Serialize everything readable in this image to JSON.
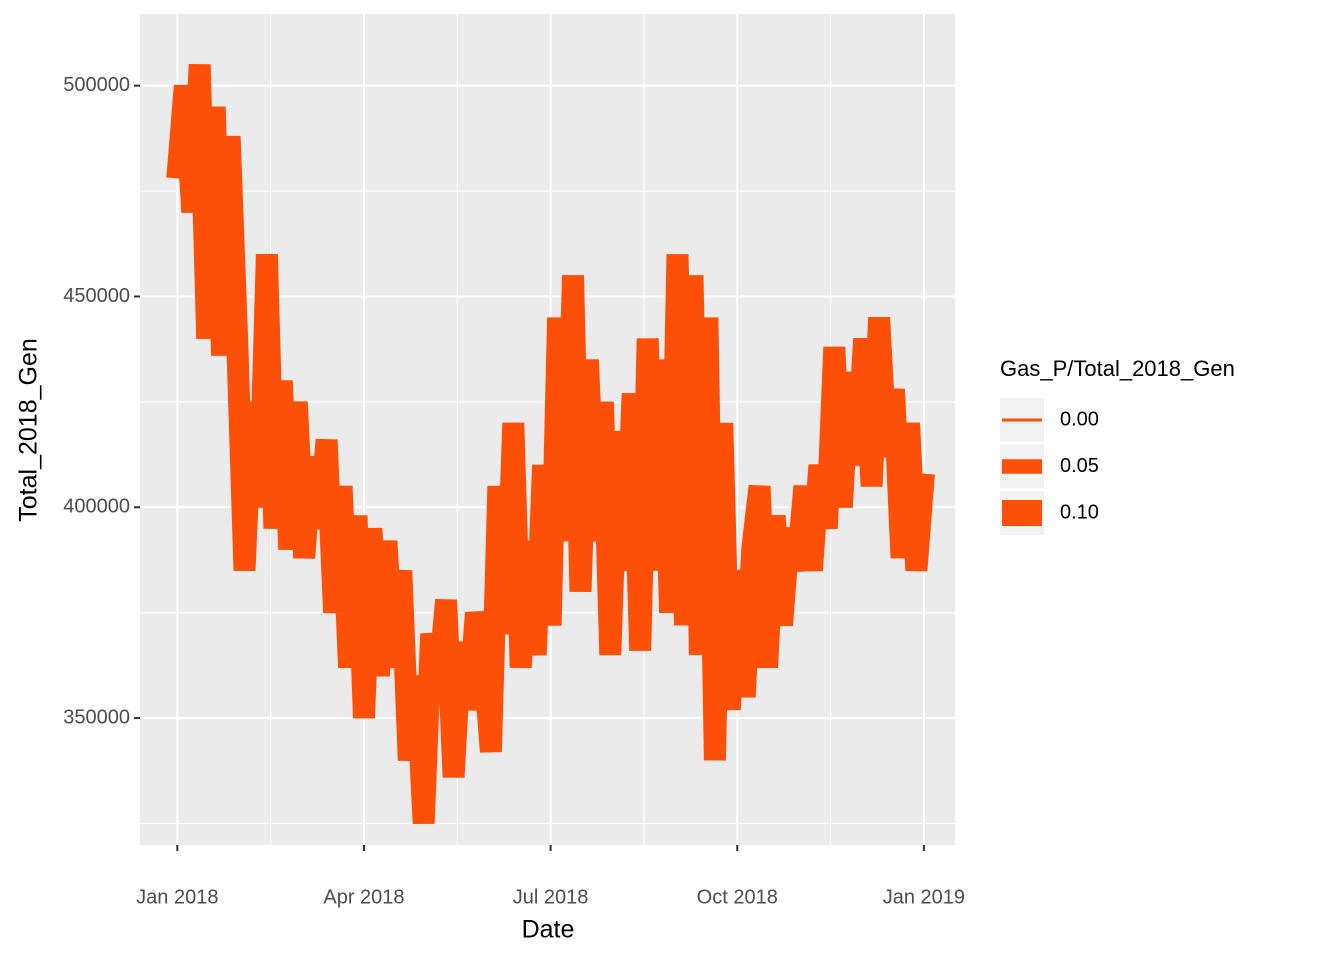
{
  "chart_data": {
    "type": "line",
    "x_label": "Date",
    "y_label": "Total_2018_Gen",
    "color": "#fc5008",
    "x": [
      0,
      0.12,
      0.24,
      0.36,
      0.48,
      0.6,
      0.72,
      0.84,
      0.96,
      1.08,
      1.2,
      1.32,
      1.44,
      1.56,
      1.68,
      1.8,
      1.92,
      2.04,
      2.16,
      2.28,
      2.4,
      2.52,
      2.64,
      2.76,
      2.88,
      3.0,
      3.12,
      3.24,
      3.36,
      3.48,
      3.6,
      3.72,
      3.84,
      3.96,
      4.08,
      4.2,
      4.32,
      4.44,
      4.56,
      4.68,
      4.8,
      4.92,
      5.04,
      5.16,
      5.28,
      5.4,
      5.52,
      5.64,
      5.76,
      5.88,
      6.0,
      6.12,
      6.24,
      6.36,
      6.48,
      6.6,
      6.72,
      6.84,
      6.96,
      7.08,
      7.2,
      7.32,
      7.44,
      7.56,
      7.68,
      7.8,
      7.92,
      8.04,
      8.16,
      8.28,
      8.4,
      8.52,
      8.64,
      8.76,
      8.88,
      9.0,
      9.12,
      9.24,
      9.36,
      9.48,
      9.6,
      9.72,
      9.84,
      9.96,
      10.08,
      10.2,
      10.32,
      10.44,
      10.56,
      10.68,
      10.8,
      10.92,
      11.04,
      11.16,
      11.28,
      11.4,
      11.52,
      11.64,
      11.76,
      11.88,
      12.0
    ],
    "values": [
      478000,
      500000,
      470000,
      505000,
      440000,
      495000,
      436000,
      488000,
      440000,
      385000,
      425000,
      400000,
      460000,
      395000,
      430000,
      390000,
      425000,
      388000,
      412000,
      395000,
      416000,
      375000,
      405000,
      362000,
      398000,
      350000,
      395000,
      360000,
      392000,
      362000,
      385000,
      340000,
      360000,
      325000,
      370000,
      358000,
      378000,
      336000,
      368000,
      352000,
      375000,
      365000,
      342000,
      405000,
      370000,
      420000,
      362000,
      392000,
      365000,
      410000,
      372000,
      445000,
      392000,
      455000,
      380000,
      435000,
      392000,
      425000,
      365000,
      418000,
      385000,
      427000,
      366000,
      440000,
      385000,
      435000,
      375000,
      460000,
      372000,
      455000,
      365000,
      445000,
      340000,
      420000,
      352000,
      385000,
      355000,
      390000,
      405000,
      362000,
      398000,
      372000,
      395000,
      385000,
      405000,
      385000,
      410000,
      395000,
      438000,
      400000,
      432000,
      410000,
      440000,
      405000,
      445000,
      412000,
      428000,
      388000,
      420000,
      385000,
      408000
    ],
    "xlim": [
      -0.6,
      12.5
    ],
    "xticks": [
      {
        "value": 0,
        "label": "Jan 2018"
      },
      {
        "value": 3,
        "label": "Apr 2018"
      },
      {
        "value": 6,
        "label": "Jul 2018"
      },
      {
        "value": 9,
        "label": "Oct 2018"
      },
      {
        "value": 12,
        "label": "Jan 2019"
      }
    ],
    "ylim": [
      319900,
      517000
    ],
    "yticks": [
      350000,
      400000,
      450000,
      500000
    ],
    "grid": true,
    "size_legend": {
      "title": "Gas_P/Total_2018_Gen",
      "entries": [
        {
          "value": 0,
          "label": "0.00"
        },
        {
          "value": 0.05,
          "label": "0.05"
        },
        {
          "value": 0.1,
          "label": "0.10"
        }
      ]
    }
  }
}
